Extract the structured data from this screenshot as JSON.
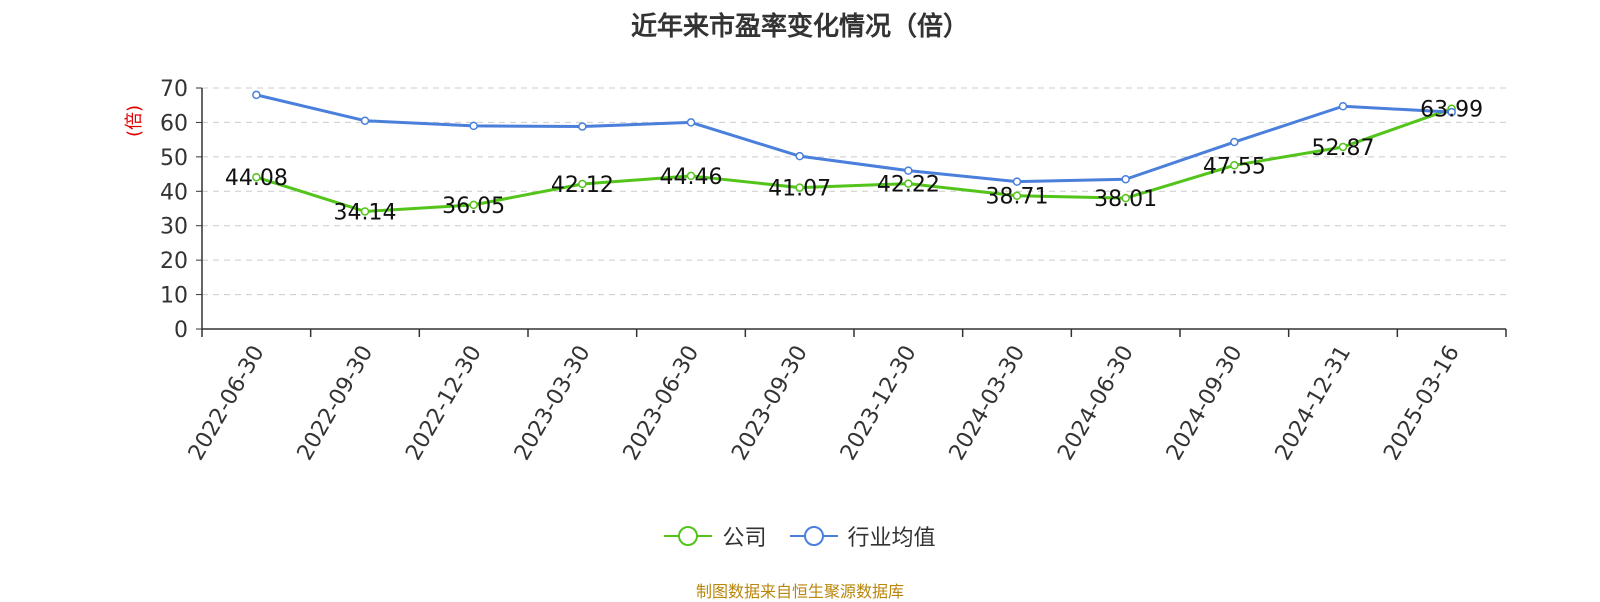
{
  "title": "近年来市盈率变化情况（倍）",
  "source": "制图数据来自恒生聚源数据库",
  "colors": {
    "company": "#52c41a",
    "industry": "#4a7fdb",
    "ylabel": "#e00000",
    "source": "#b8860b",
    "grid": "#cccccc",
    "axis": "#333333"
  },
  "chart_data": {
    "type": "line",
    "title": "近年来市盈率变化情况（倍）",
    "xlabel": "",
    "ylabel": "(倍)",
    "ylim": [
      0,
      70
    ],
    "yticks": [
      0,
      10,
      20,
      30,
      40,
      50,
      60,
      70
    ],
    "grid": "horizontal-dashed",
    "legend": "bottom",
    "categories": [
      "2022-06-30",
      "2022-09-30",
      "2022-12-30",
      "2023-03-30",
      "2023-06-30",
      "2023-09-30",
      "2023-12-30",
      "2024-03-30",
      "2024-06-30",
      "2024-09-30",
      "2024-12-31",
      "2025-03-16"
    ],
    "series": [
      {
        "name": "公司",
        "color": "#52c41a",
        "values": [
          44.08,
          34.14,
          36.05,
          42.12,
          44.46,
          41.07,
          42.22,
          38.71,
          38.01,
          47.55,
          52.87,
          63.99
        ],
        "labels": [
          "44.08",
          "34.14",
          "36.05",
          "42.12",
          "44.46",
          "41.07",
          "42.22",
          "38.71",
          "38.01",
          "47.55",
          "52.87",
          "63.99"
        ]
      },
      {
        "name": "行业均值",
        "color": "#4a7fdb",
        "values": [
          68.0,
          60.5,
          59.0,
          58.8,
          60.0,
          50.2,
          46.0,
          42.8,
          43.5,
          54.3,
          64.7,
          63.0
        ]
      }
    ]
  }
}
